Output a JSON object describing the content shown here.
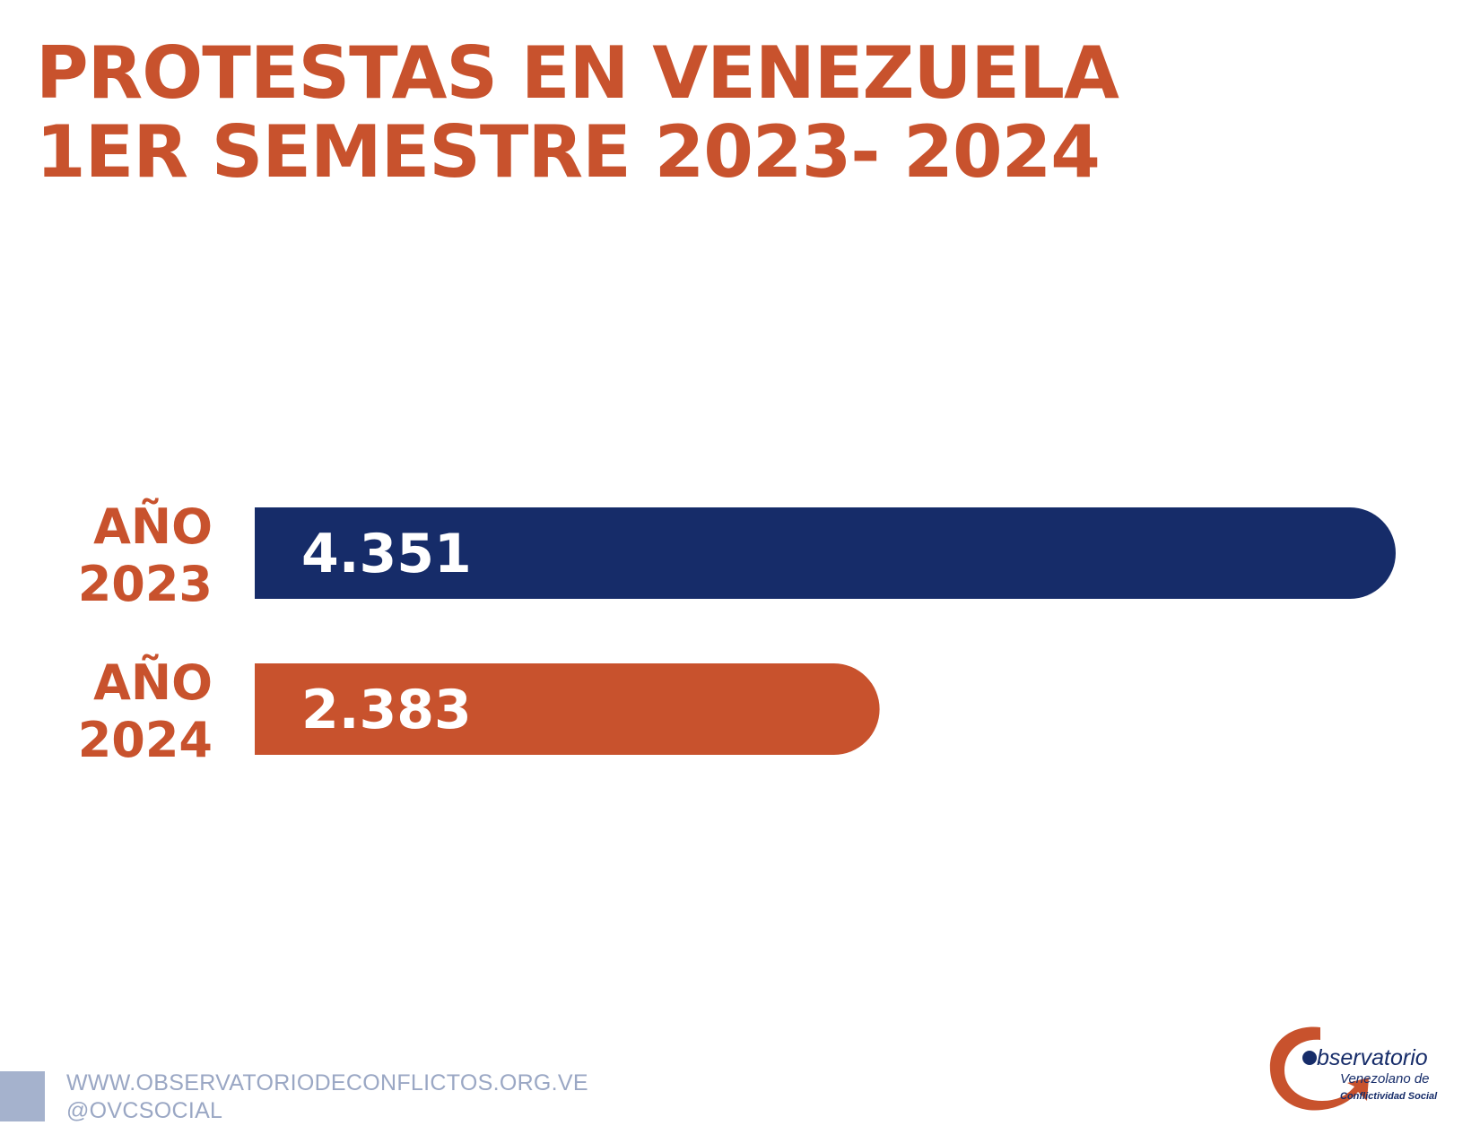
{
  "title": {
    "line1": "PROTESTAS EN VENEZUELA",
    "line2": "1ER SEMESTRE 2023- 2024"
  },
  "colors": {
    "accent": "#c8522d",
    "navy": "#162c69",
    "footer": "#a5b2cd",
    "white": "#ffffff"
  },
  "chart_data": {
    "type": "bar",
    "orientation": "horizontal",
    "title": "PROTESTAS EN VENEZUELA 1ER SEMESTRE 2023- 2024",
    "categories": [
      {
        "line1": "AÑO",
        "line2": "2023"
      },
      {
        "line1": "AÑO",
        "line2": "2024"
      }
    ],
    "values": [
      4351,
      2383
    ],
    "value_labels": [
      "4.351",
      "2.383"
    ],
    "bar_colors": [
      "#162c69",
      "#c8522d"
    ],
    "xlim": [
      0,
      4351
    ],
    "grid": false,
    "xlabel": "",
    "ylabel": ""
  },
  "footer": {
    "url": "WWW.OBSERVATORIODECONFLICTOS.ORG.VE",
    "social": "@OVCSOCIAL"
  },
  "logo": {
    "word": "bservatorio",
    "line2": "Venezolano de",
    "line3": "Conflictividad Social"
  }
}
